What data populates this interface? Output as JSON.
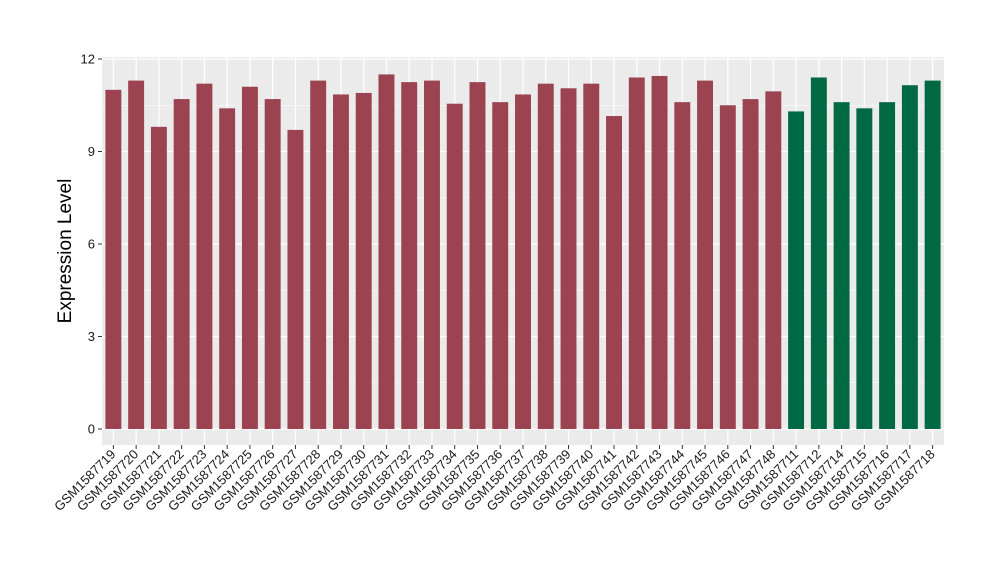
{
  "chart_data": {
    "type": "bar",
    "title": "",
    "xlabel": "",
    "ylabel": "Expression Level",
    "ylim": [
      0,
      12
    ],
    "yticks": [
      0,
      3,
      6,
      9,
      12
    ],
    "grid": true,
    "legend": "none",
    "colors": {
      "group_a": "#9b4350",
      "group_b": "#006843",
      "panel_bg": "#ebebeb",
      "grid": "#ffffff"
    },
    "categories": [
      "GSM1587719",
      "GSM1587720",
      "GSM1587721",
      "GSM1587722",
      "GSM1587723",
      "GSM1587724",
      "GSM1587725",
      "GSM1587726",
      "GSM1587727",
      "GSM1587728",
      "GSM1587729",
      "GSM1587730",
      "GSM1587731",
      "GSM1587732",
      "GSM1587733",
      "GSM1587734",
      "GSM1587735",
      "GSM1587736",
      "GSM1587737",
      "GSM1587738",
      "GSM1587739",
      "GSM1587740",
      "GSM1587741",
      "GSM1587742",
      "GSM1587743",
      "GSM1587744",
      "GSM1587745",
      "GSM1587746",
      "GSM1587747",
      "GSM1587748",
      "GSM1587711",
      "GSM1587712",
      "GSM1587714",
      "GSM1587715",
      "GSM1587716",
      "GSM1587717",
      "GSM1587718"
    ],
    "values": [
      11.0,
      11.3,
      9.8,
      10.7,
      11.2,
      10.4,
      11.1,
      10.7,
      9.7,
      11.3,
      10.85,
      10.9,
      11.5,
      11.25,
      11.3,
      10.55,
      11.25,
      10.6,
      10.85,
      11.2,
      11.05,
      11.2,
      10.15,
      11.4,
      11.45,
      10.6,
      11.3,
      10.5,
      10.7,
      10.95,
      10.3,
      11.4,
      10.6,
      10.4,
      10.6,
      11.15,
      11.3
    ],
    "groups": [
      "a",
      "a",
      "a",
      "a",
      "a",
      "a",
      "a",
      "a",
      "a",
      "a",
      "a",
      "a",
      "a",
      "a",
      "a",
      "a",
      "a",
      "a",
      "a",
      "a",
      "a",
      "a",
      "a",
      "a",
      "a",
      "a",
      "a",
      "a",
      "a",
      "a",
      "b",
      "b",
      "b",
      "b",
      "b",
      "b",
      "b"
    ]
  }
}
